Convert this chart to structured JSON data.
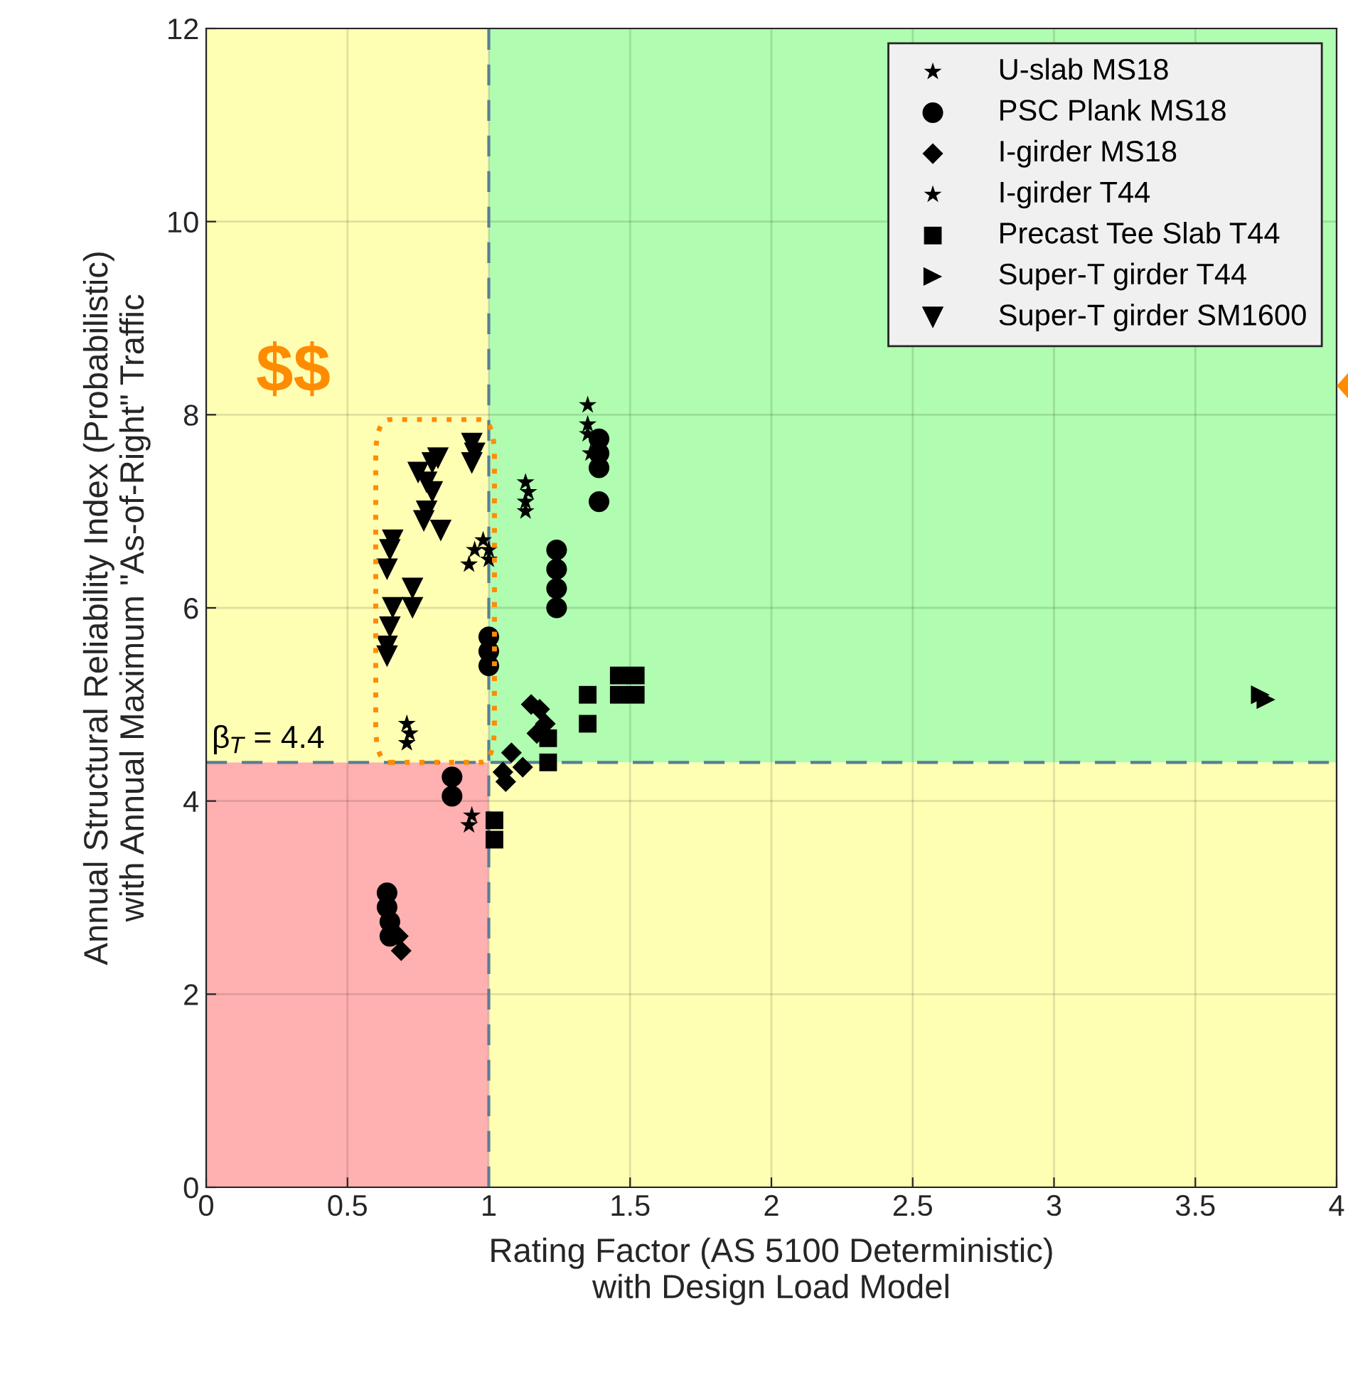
{
  "chart_data": {
    "type": "scatter",
    "xlabel": "Rating Factor (AS 5100 Deterministic)\nwith Design Load Model",
    "ylabel": "Annual Structural Reliability Index (Probabilistic)\nwith Annual Maximum \"As-of-Right\" Traffic",
    "xlim": [
      0,
      4
    ],
    "xticks": [
      0,
      0.5,
      1,
      1.5,
      2,
      2.5,
      3,
      3.5,
      4
    ],
    "ylim": [
      0,
      12
    ],
    "yticks": [
      0,
      2,
      4,
      6,
      8,
      10,
      12
    ],
    "grid": true,
    "legend": "top right",
    "ref_lines": [
      {
        "axis": "x",
        "value": 1,
        "label": null,
        "color": "#5a7d96",
        "line_style": "dashed"
      },
      {
        "axis": "y",
        "value": 4.4,
        "label": "β$_{T}$ = 4.4",
        "color": "#5a7d96",
        "line_style": "dashed"
      }
    ],
    "bands": [
      {
        "axis": "y",
        "from": 0,
        "to": 4.4,
        "color": "#ffb0b0",
        "label": null
      },
      {
        "axis": "y",
        "from": 4.4,
        "to": 12,
        "color": "#ffffb4",
        "label": null
      },
      {
        "axis": "y",
        "from": 0,
        "to": 4.4,
        "color": "#ffffb4",
        "label": null
      },
      {
        "axis": "y",
        "from": 4.4,
        "to": 12,
        "color": "#b0fcb0",
        "label": null
      }
    ],
    "annotations": [
      "$$"
    ],
    "series": [
      {
        "name": "U-slab MS18",
        "color": "#000000",
        "marker": "star",
        "x": [
          1.35,
          1.35,
          1.13,
          0.93,
          0.95,
          1.0
        ],
        "values": [
          8.1,
          7.9,
          7.0,
          6.45,
          6.6,
          6.6
        ]
      },
      {
        "name": "PSC Plank MS18",
        "color": "#000000",
        "marker": "circle",
        "x": [
          1.39,
          1.39,
          1.39,
          1.39,
          1.24,
          1.24,
          1.24,
          1.24,
          1.0,
          1.0,
          1.0,
          0.87,
          0.87,
          0.64,
          0.64,
          0.65,
          0.65
        ],
        "values": [
          7.75,
          7.6,
          7.45,
          7.1,
          6.6,
          6.4,
          6.2,
          6.0,
          5.7,
          5.55,
          5.4,
          4.25,
          4.05,
          3.05,
          2.9,
          2.75,
          2.6
        ]
      },
      {
        "name": "I-girder MS18",
        "color": "#000000",
        "marker": "diamond",
        "x": [
          0.68,
          0.69,
          1.05,
          1.08,
          1.12,
          1.06,
          1.15,
          1.18,
          1.2,
          1.17
        ],
        "values": [
          2.6,
          2.45,
          4.3,
          4.5,
          4.35,
          4.2,
          5.0,
          4.95,
          4.8,
          4.7
        ]
      },
      {
        "name": "I-girder T44",
        "color": "#000000",
        "marker": "star",
        "x": [
          1.35,
          1.36,
          1.13,
          1.14,
          1.13,
          0.98,
          1.0,
          0.71,
          0.72,
          0.71,
          0.94,
          0.93
        ],
        "values": [
          7.8,
          7.6,
          7.3,
          7.2,
          7.1,
          6.7,
          6.5,
          4.8,
          4.7,
          4.6,
          3.85,
          3.75
        ]
      },
      {
        "name": "Precast Tee Slab T44",
        "color": "#000000",
        "marker": "square",
        "x": [
          1.02,
          1.02,
          1.21,
          1.21,
          1.35,
          1.35,
          1.46,
          1.52,
          1.46,
          1.52
        ],
        "values": [
          3.8,
          3.6,
          4.65,
          4.4,
          5.1,
          4.8,
          5.3,
          5.3,
          5.1,
          5.1
        ]
      },
      {
        "name": "Super-T girder T44",
        "color": "#000000",
        "marker": "triangle-right",
        "x": [
          3.73,
          3.75
        ],
        "values": [
          5.1,
          5.05
        ]
      },
      {
        "name": "Super-T girder SM1600",
        "color": "#000000",
        "marker": "triangle-down",
        "x": [
          0.64,
          0.64,
          0.65,
          0.66,
          0.66,
          0.65,
          0.64,
          0.73,
          0.73,
          0.75,
          0.78,
          0.8,
          0.78,
          0.77,
          0.83,
          0.8,
          0.82,
          0.94,
          0.95,
          0.94
        ],
        "values": [
          5.5,
          5.6,
          5.8,
          6.0,
          6.7,
          6.6,
          6.4,
          6.0,
          6.2,
          7.4,
          7.3,
          7.2,
          7.0,
          6.9,
          6.8,
          7.5,
          7.55,
          7.7,
          7.6,
          7.5
        ]
      }
    ]
  }
}
